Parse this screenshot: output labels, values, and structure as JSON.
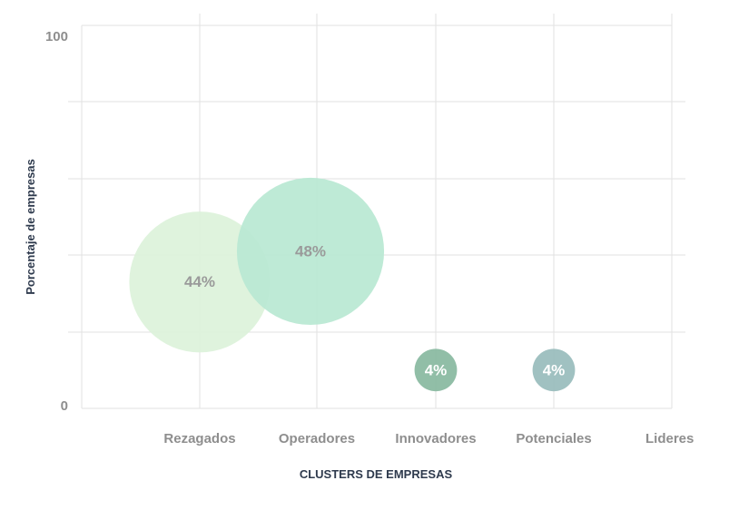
{
  "chart_data": {
    "type": "bubble",
    "xlabel": "CLUSTERS DE EMPRESAS",
    "ylabel": "Porcentaje de empresas",
    "ylim": [
      0,
      100
    ],
    "ytick_labels": [
      "0",
      "100"
    ],
    "categories": [
      "Rezagados",
      "Operadores",
      "Innovadores",
      "Potenciales",
      "Lideres"
    ],
    "grid": true,
    "points": [
      {
        "category": "Rezagados",
        "y": 33,
        "size": 44,
        "label": "44%",
        "color": "#dcf2da",
        "label_color": "#9a9a9a"
      },
      {
        "category": "Operadores",
        "y": 41,
        "size": 48,
        "label": "48%",
        "color": "#b8e8d2",
        "label_color": "#9a9a9a"
      },
      {
        "category": "Innovadores",
        "y": 10,
        "size": 4,
        "label": "4%",
        "color": "#88b9a0",
        "label_color": "#ffffff"
      },
      {
        "category": "Potenciales",
        "y": 10,
        "size": 4,
        "label": "4%",
        "color": "#98bcbc",
        "label_color": "#ffffff"
      }
    ]
  }
}
